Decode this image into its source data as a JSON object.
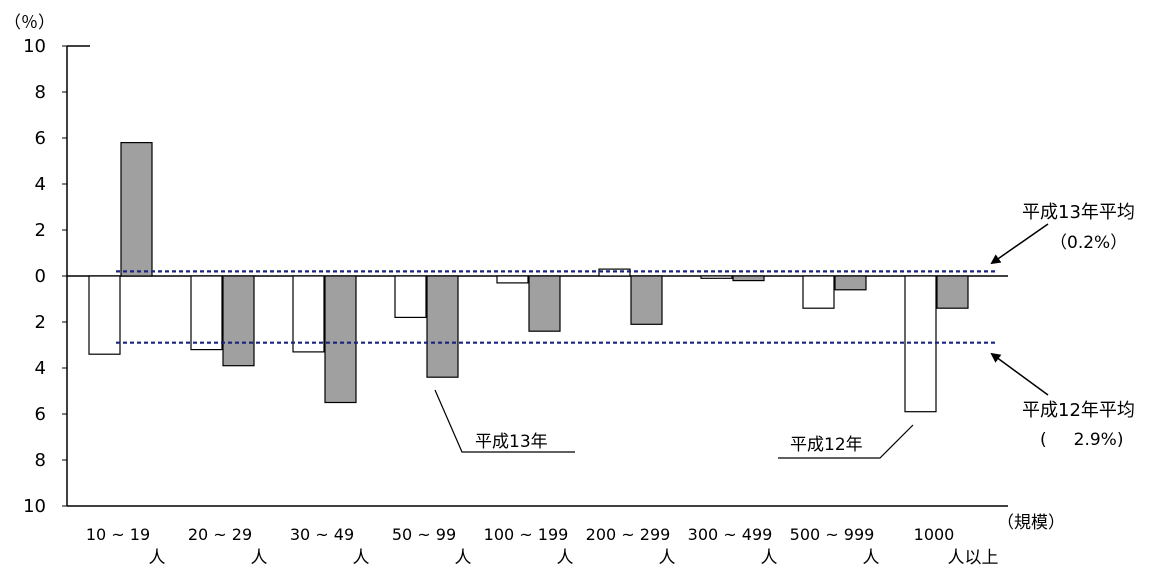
{
  "chart_data": {
    "type": "bar",
    "y_unit_label": "（％）",
    "x_unit_label": "（規模）",
    "ylim": [
      -10,
      10
    ],
    "y_ticks": [
      10,
      8,
      6,
      4,
      2,
      0,
      -2,
      -4,
      -6,
      -8,
      -10
    ],
    "y_tick_labels": [
      "10",
      "8",
      "6",
      "4",
      "2",
      "0",
      "2",
      "4",
      "6",
      "8",
      "10"
    ],
    "categories": [
      {
        "line1": "10 ~ 19",
        "line2": "人"
      },
      {
        "line1": "20 ~ 29",
        "line2": "人"
      },
      {
        "line1": "30 ~ 49",
        "line2": "人"
      },
      {
        "line1": "50 ~ 99",
        "line2": "人"
      },
      {
        "line1": "100 ~ 199",
        "line2": "人"
      },
      {
        "line1": "200 ~ 299",
        "line2": "人"
      },
      {
        "line1": "300 ~ 499",
        "line2": "人"
      },
      {
        "line1": "500 ~ 999",
        "line2": "人"
      },
      {
        "line1": "1000",
        "line2": "人以上"
      }
    ],
    "series": [
      {
        "name": "平成12年",
        "color": "#ffffff",
        "values": [
          -3.4,
          -3.2,
          -3.3,
          -1.8,
          -0.3,
          0.3,
          -0.1,
          -1.4,
          -5.9
        ]
      },
      {
        "name": "平成13年",
        "color": "#a0a0a0",
        "values": [
          5.8,
          -3.9,
          -5.5,
          -4.4,
          -2.4,
          -2.1,
          -0.2,
          -0.6,
          -1.4
        ]
      }
    ],
    "reference_lines": [
      {
        "value": 0.2,
        "color": "#1a237e",
        "label_line1": "平成13年平均",
        "label_line2": "（0.2%）"
      },
      {
        "value": -2.9,
        "color": "#1a237e",
        "label_line1": "平成12年平均",
        "label_line2": "(     2.9%)"
      }
    ],
    "series_callouts": [
      {
        "text": "平成13年"
      },
      {
        "text": "平成12年"
      }
    ],
    "grid": false,
    "legend": "callouts"
  }
}
